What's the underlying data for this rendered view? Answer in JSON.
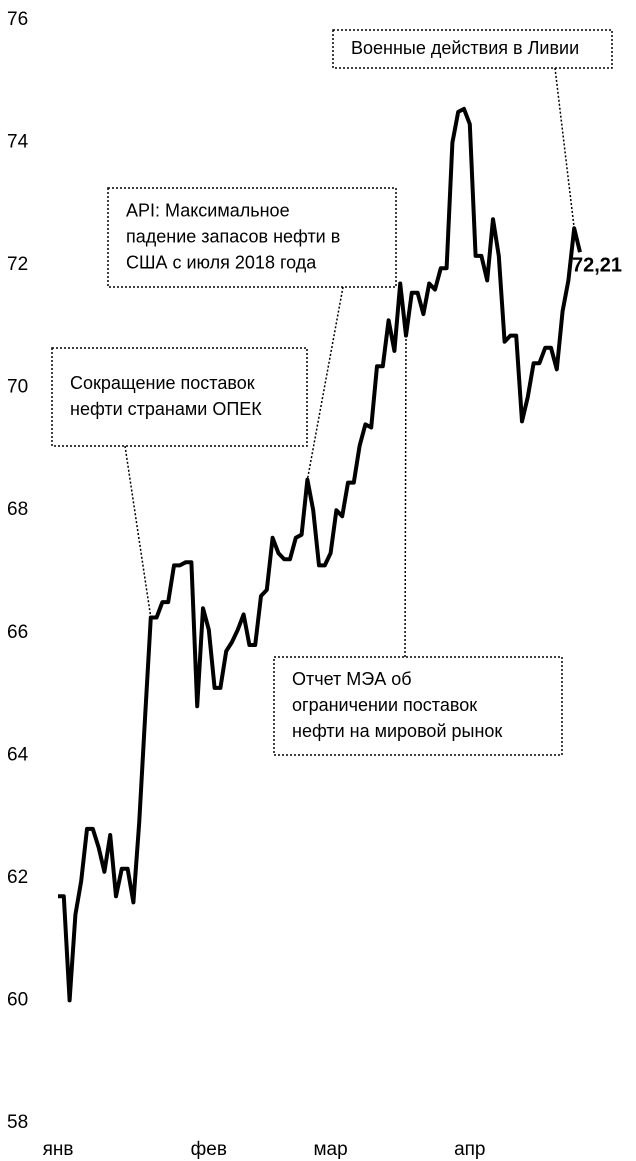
{
  "chart_data": {
    "type": "line",
    "categories": [
      "янв",
      null,
      null,
      null,
      null,
      null,
      null,
      null,
      null,
      null,
      null,
      null,
      null,
      null,
      null,
      null,
      null,
      null,
      null,
      null,
      null,
      null,
      null,
      null,
      null,
      null,
      "фев",
      null,
      null,
      null,
      null,
      null,
      null,
      null,
      null,
      null,
      null,
      null,
      null,
      null,
      null,
      null,
      null,
      null,
      null,
      null,
      null,
      "мар",
      null,
      null,
      null,
      null,
      null,
      null,
      null,
      null,
      null,
      null,
      null,
      null,
      null,
      null,
      null,
      null,
      null,
      null,
      null,
      null,
      null,
      null,
      null,
      "апр",
      null,
      null,
      null,
      null,
      null,
      null,
      null,
      null,
      null,
      null,
      null,
      null,
      null,
      null,
      null,
      null,
      null,
      null,
      null
    ],
    "series": [
      {
        "color": "#000000",
        "values": [
          61.7,
          61.7,
          60.0,
          61.4,
          61.95,
          62.8,
          62.8,
          62.5,
          62.1,
          62.7,
          61.7,
          62.15,
          62.15,
          61.6,
          62.9,
          64.6,
          66.25,
          66.25,
          66.5,
          66.5,
          67.1,
          67.1,
          67.15,
          67.15,
          64.8,
          66.4,
          66.05,
          65.1,
          65.1,
          65.7,
          65.85,
          66.05,
          66.3,
          65.8,
          65.8,
          66.6,
          66.7,
          67.55,
          67.3,
          67.2,
          67.2,
          67.55,
          67.6,
          68.5,
          68.0,
          67.1,
          67.1,
          67.3,
          68.0,
          67.9,
          68.45,
          68.45,
          69.05,
          69.4,
          69.35,
          70.35,
          70.35,
          71.1,
          70.6,
          71.7,
          70.85,
          71.55,
          71.55,
          71.2,
          71.7,
          71.6,
          71.95,
          71.95,
          74.0,
          74.5,
          74.55,
          74.3,
          72.15,
          72.15,
          71.75,
          72.75,
          72.15,
          70.75,
          70.85,
          70.85,
          69.45,
          69.85,
          70.4,
          70.4,
          70.65,
          70.65,
          70.3,
          71.25,
          71.75,
          72.6,
          72.21
        ],
        "value_labels": [
          null,
          null,
          null,
          null,
          null,
          null,
          null,
          null,
          null,
          null,
          null,
          null,
          null,
          null,
          null,
          null,
          null,
          null,
          null,
          null,
          null,
          null,
          null,
          null,
          null,
          null,
          null,
          null,
          null,
          null,
          null,
          null,
          null,
          null,
          null,
          null,
          null,
          null,
          null,
          null,
          null,
          null,
          null,
          null,
          null,
          null,
          null,
          null,
          null,
          null,
          null,
          null,
          null,
          null,
          null,
          null,
          null,
          null,
          null,
          null,
          null,
          null,
          null,
          null,
          null,
          null,
          null,
          null,
          null,
          null,
          null,
          null,
          null,
          null,
          null,
          null,
          null,
          null,
          null,
          null,
          null,
          null,
          null,
          null,
          null,
          null,
          null,
          null,
          null,
          null,
          "72,21"
        ]
      }
    ],
    "ylim": [
      58,
      76
    ],
    "yticks": [
      58,
      60,
      62,
      64,
      66,
      68,
      70,
      72,
      74,
      76
    ],
    "annotations": [
      {
        "lines": [
          "Военные действия в Ливии"
        ]
      },
      {
        "lines": [
          "API: Максимальное",
          "падение запасов нефти в",
          "США с июля 2018 года"
        ]
      },
      {
        "lines": [
          "Сокращение поставок",
          "нефти странами ОПЕК"
        ]
      },
      {
        "lines": [
          "Отчет МЭА об",
          "ограничении поставок",
          "нефти на мировой рынок"
        ]
      }
    ]
  }
}
